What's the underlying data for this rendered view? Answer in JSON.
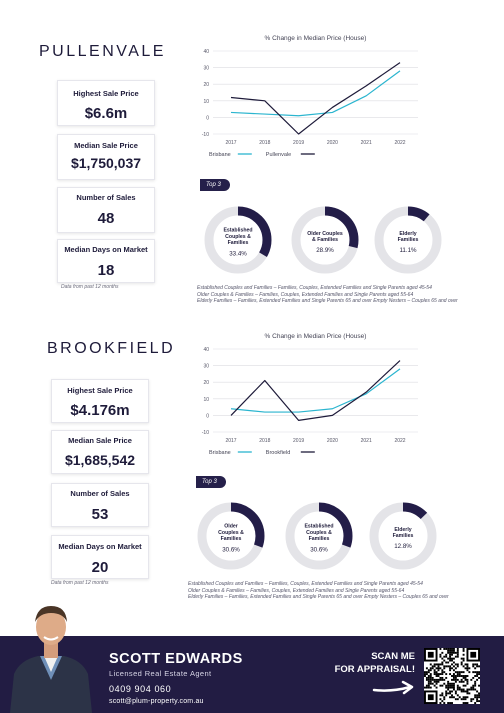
{
  "sections": [
    {
      "suburb": "PULLENVALE",
      "stats": [
        {
          "label": "Highest Sale Price",
          "value": "$6.6m"
        },
        {
          "label": "Median Sale Price",
          "value": "$1,750,037"
        },
        {
          "label": "Number of Sales",
          "value": "48"
        },
        {
          "label": "Median Days on Market",
          "value": "18"
        }
      ],
      "note": "Data from past 12 months",
      "chart_title": "% Change in Median Price (House)",
      "top3_label": "Top 3",
      "donuts": [
        {
          "label_lines": [
            "Established",
            "Couples &",
            "Families"
          ],
          "value": "33.4%",
          "fraction": 0.334,
          "label": "Established Couples & Families"
        },
        {
          "label_lines": [
            "Older Couples",
            "& Families"
          ],
          "value": "28.9%",
          "fraction": 0.289,
          "label": "Older Couples & Families"
        },
        {
          "label_lines": [
            "Elderly",
            "Families"
          ],
          "value": "11.1%",
          "fraction": 0.111,
          "label": "Elderly Families"
        }
      ],
      "footnotes": [
        "Established Couples and Families – Families, Couples, Extended Families and Single Parents aged 45-54",
        "Older Couples & Families – Families, Couples, Extended Families and Single Parents aged 55-64",
        "Elderly Families – Families, Extended Families and Single Parents 65 and over Empty Nesters – Couples 65 and over"
      ]
    },
    {
      "suburb": "BROOKFIELD",
      "stats": [
        {
          "label": "Highest Sale Price",
          "value": "$4.176m"
        },
        {
          "label": "Median Sale Price",
          "value": "$1,685,542"
        },
        {
          "label": "Number of Sales",
          "value": "53"
        },
        {
          "label": "Median Days on Market",
          "value": "20"
        }
      ],
      "note": "Data from past 12 months",
      "chart_title": "% Change in Median Price (House)",
      "top3_label": "Top 3",
      "donuts": [
        {
          "label_lines": [
            "Older",
            "Couples &",
            "Families"
          ],
          "value": "30.6%",
          "fraction": 0.306,
          "label": "Older Couples & Families"
        },
        {
          "label_lines": [
            "Established",
            "Couples &",
            "Families"
          ],
          "value": "30.6%",
          "fraction": 0.306,
          "label": "Established Couples & Families"
        },
        {
          "label_lines": [
            "Elderly",
            "Families"
          ],
          "value": "12.8%",
          "fraction": 0.128,
          "label": "Elderly Families"
        }
      ],
      "footnotes": [
        "Established Couples and Families – Families, Couples, Extended Families and Single Parents aged 45-54",
        "Older Couples & Families – Families, Couples, Extended Families and Single Parents aged 55-64",
        "Elderly Families – Families, Extended Families and Single Parents 65 and over Empty Nesters – Couples 65 and over"
      ]
    }
  ],
  "chart_data": [
    {
      "type": "line",
      "title": "% Change in Median Price (House)",
      "x": [
        2017,
        2018,
        2019,
        2020,
        2021,
        2022
      ],
      "ylim": [
        -10,
        40
      ],
      "yticks": [
        40,
        30,
        20,
        10,
        0,
        -10
      ],
      "grid": true,
      "legend_position": "bottom-left",
      "series": [
        {
          "name": "Brisbane",
          "color": "#2bb5cf",
          "values": [
            3,
            2,
            1,
            3,
            13,
            28
          ]
        },
        {
          "name": "Pullenvale",
          "color": "#1e1b3a",
          "values": [
            12,
            10,
            -10,
            6,
            19,
            33
          ]
        }
      ]
    },
    {
      "type": "line",
      "title": "% Change in Median Price (House)",
      "x": [
        2017,
        2018,
        2019,
        2020,
        2021,
        2022
      ],
      "ylim": [
        -10,
        40
      ],
      "yticks": [
        40,
        30,
        20,
        10,
        0,
        -10
      ],
      "grid": true,
      "legend_position": "bottom-left",
      "series": [
        {
          "name": "Brisbane",
          "color": "#2bb5cf",
          "values": [
            4,
            2,
            2,
            4,
            13,
            28
          ]
        },
        {
          "name": "Brookfield",
          "color": "#1e1b3a",
          "values": [
            0,
            21,
            -3,
            0,
            14,
            33
          ]
        }
      ]
    }
  ],
  "footer": {
    "agent_name": "SCOTT EDWARDS",
    "agent_role": "Licensed Real Estate Agent",
    "phone": "0409 904 060",
    "email": "scott@plum-property.com.au",
    "scan_line1": "SCAN ME",
    "scan_line2": "FOR APPRAISAL!"
  },
  "colors": {
    "navy": "#1e1b3a",
    "accent_line": "#2bb5cf",
    "donut_track": "#e4e4e8",
    "donut_fill": "#231d48",
    "footer_bg": "#221c43"
  }
}
